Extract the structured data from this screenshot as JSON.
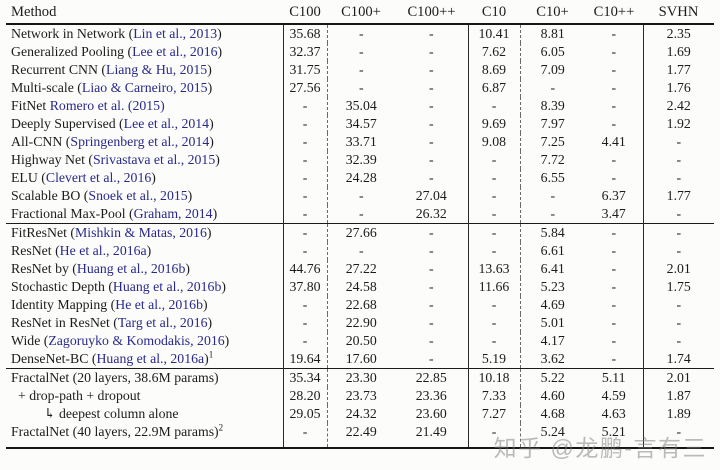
{
  "table": {
    "columns": [
      "Method",
      "C100",
      "C100+",
      "C100++",
      "C10",
      "C10+",
      "C10++",
      "SVHN"
    ],
    "groups": [
      {
        "rows": [
          {
            "pre": "Network in Network (",
            "cite": "Lin et al., 2013",
            "post": ")",
            "vals": [
              "35.68",
              "-",
              "-",
              "10.41",
              "8.81",
              "-",
              "2.35"
            ]
          },
          {
            "pre": "Generalized Pooling (",
            "cite": "Lee et al., 2016",
            "post": ")",
            "vals": [
              "32.37",
              "-",
              "-",
              "7.62",
              "6.05",
              "-",
              "1.69"
            ]
          },
          {
            "pre": "Recurrent CNN (",
            "cite": "Liang & Hu, 2015",
            "post": ")",
            "vals": [
              "31.75",
              "-",
              "-",
              "8.69",
              "7.09",
              "-",
              "1.77"
            ]
          },
          {
            "pre": "Multi-scale (",
            "cite": "Liao & Carneiro, 2015",
            "post": ")",
            "vals": [
              "27.56",
              "-",
              "-",
              "6.87",
              "-",
              "-",
              "1.76"
            ]
          },
          {
            "pre": "FitNet ",
            "cite": "Romero et al. (2015)",
            "post": "",
            "vals": [
              "-",
              "35.04",
              "-",
              "-",
              "8.39",
              "-",
              "2.42"
            ]
          },
          {
            "pre": "Deeply Supervised (",
            "cite": "Lee et al., 2014",
            "post": ")",
            "vals": [
              "-",
              "34.57",
              "-",
              "9.69",
              "7.97",
              "-",
              "1.92"
            ]
          },
          {
            "pre": "All-CNN (",
            "cite": "Springenberg et al., 2014",
            "post": ")",
            "vals": [
              "-",
              "33.71",
              "-",
              "9.08",
              "7.25",
              "4.41",
              "-"
            ]
          },
          {
            "pre": "Highway Net (",
            "cite": "Srivastava et al., 2015",
            "post": ")",
            "vals": [
              "-",
              "32.39",
              "-",
              "-",
              "7.72",
              "-",
              "-"
            ]
          },
          {
            "pre": "ELU (",
            "cite": "Clevert et al., 2016",
            "post": ")",
            "vals": [
              "-",
              "24.28",
              "-",
              "-",
              "6.55",
              "-",
              "-"
            ]
          },
          {
            "pre": "Scalable BO (",
            "cite": "Snoek et al., 2015",
            "post": ")",
            "vals": [
              "-",
              "-",
              "27.04",
              "-",
              "-",
              "6.37",
              "1.77"
            ]
          },
          {
            "pre": "Fractional Max-Pool (",
            "cite": "Graham, 2014",
            "post": ")",
            "vals": [
              "-",
              "-",
              "26.32",
              "-",
              "-",
              "3.47",
              "-"
            ]
          }
        ]
      },
      {
        "rows": [
          {
            "pre": "FitResNet (",
            "cite": "Mishkin & Matas, 2016",
            "post": ")",
            "vals": [
              "-",
              "27.66",
              "-",
              "-",
              "5.84",
              "-",
              "-"
            ]
          },
          {
            "pre": "ResNet (",
            "cite": "He et al., 2016a",
            "post": ")",
            "vals": [
              "-",
              "-",
              "-",
              "-",
              "6.61",
              "-",
              "-"
            ]
          },
          {
            "pre": "ResNet by (",
            "cite": "Huang et al., 2016b",
            "post": ")",
            "vals": [
              "44.76",
              "27.22",
              "-",
              "13.63",
              "6.41",
              "-",
              "2.01"
            ]
          },
          {
            "pre": "Stochastic Depth (",
            "cite": "Huang et al., 2016b",
            "post": ")",
            "vals": [
              "37.80",
              "24.58",
              "-",
              "11.66",
              "5.23",
              "-",
              "1.75"
            ]
          },
          {
            "pre": "Identity Mapping (",
            "cite": "He et al., 2016b",
            "post": ")",
            "vals": [
              "-",
              "22.68",
              "-",
              "-",
              "4.69",
              "-",
              "-"
            ]
          },
          {
            "pre": "ResNet in ResNet (",
            "cite": "Targ et al., 2016",
            "post": ")",
            "vals": [
              "-",
              "22.90",
              "-",
              "-",
              "5.01",
              "-",
              "-"
            ]
          },
          {
            "pre": "Wide (",
            "cite": "Zagoruyko & Komodakis, 2016",
            "post": ")",
            "vals": [
              "-",
              "20.50",
              "-",
              "-",
              "4.17",
              "-",
              "-"
            ]
          },
          {
            "pre": "DenseNet-BC (",
            "cite": "Huang et al., 2016a",
            "post": ")",
            "sup": "1",
            "vals": [
              "19.64",
              "17.60",
              "-",
              "5.19",
              "3.62",
              "-",
              "1.74"
            ]
          }
        ]
      },
      {
        "rows": [
          {
            "pre": "FractalNet (20 layers, 38.6M params)",
            "cite": "",
            "post": "",
            "vals": [
              "35.34",
              "23.30",
              "22.85",
              "10.18",
              "5.22",
              "5.11",
              "2.01"
            ]
          },
          {
            "pre": "+ drop-path + dropout",
            "cite": "",
            "post": "",
            "indent": 1,
            "vals": [
              "28.20",
              "23.73",
              "23.36",
              "7.33",
              "4.60",
              "4.59",
              "1.87"
            ]
          },
          {
            "pre": "↳ deepest column alone",
            "cite": "",
            "post": "",
            "indent": 2,
            "vals": [
              "29.05",
              "24.32",
              "23.60",
              "7.27",
              "4.68",
              "4.63",
              "1.89"
            ]
          },
          {
            "pre": "FractalNet (40 layers, 22.9M params)",
            "cite": "",
            "post": "",
            "sup": "2",
            "vals": [
              "-",
              "22.49",
              "21.49",
              "-",
              "5.24",
              "5.21",
              "-"
            ]
          }
        ]
      }
    ]
  },
  "watermark": "知乎 @龙鹏-言有三",
  "colors": {
    "citation_link": "#29298c",
    "text": "#1c1c1c",
    "rule": "#161616",
    "watermark": "#7d7d7d"
  }
}
